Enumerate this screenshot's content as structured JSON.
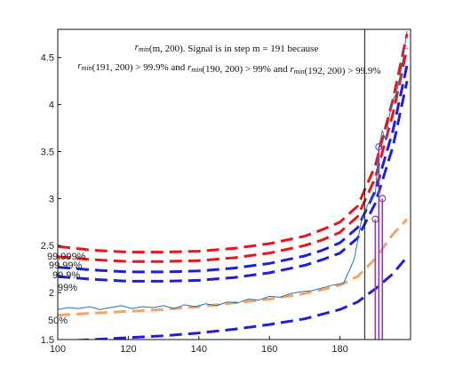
{
  "chart_data": {
    "type": "line",
    "title": "",
    "xlabel": "",
    "ylabel": "",
    "xlim": [
      100,
      200
    ],
    "ylim": [
      1.5,
      4.8
    ],
    "x_ticks": [
      100,
      120,
      140,
      160,
      180
    ],
    "x_tick_labels": [
      "100",
      "120",
      "140",
      "160",
      "180"
    ],
    "y_ticks": [
      1.5,
      2,
      2.5,
      3,
      3.5,
      4,
      4.5
    ],
    "y_tick_labels": [
      "1.5",
      "2",
      "2.5",
      "3",
      "3.5",
      "4",
      "4.5"
    ],
    "grid": false,
    "annotation": {
      "line1": "r_min(m, 200). Signal is in step m = 191 because",
      "line2": "r_min(191, 200) > 99.9% and r_min(190, 200) > 99% and r_min(192, 200) > 99.9%"
    },
    "threshold_labels": [
      "99.999%",
      "99.99%",
      "99.9%",
      "99%",
      "50%"
    ],
    "vertical_marker_x": 187,
    "threshold_curves": [
      {
        "label": "99.999%",
        "color": "#e8161b",
        "x": [
          100,
          110,
          120,
          130,
          140,
          150,
          160,
          170,
          175,
          180,
          185,
          190,
          195,
          199
        ],
        "y": [
          2.49,
          2.45,
          2.43,
          2.43,
          2.44,
          2.47,
          2.52,
          2.6,
          2.67,
          2.75,
          2.92,
          3.35,
          4.05,
          4.75
        ]
      },
      {
        "label": "99.99%",
        "color": "#e8161b",
        "x": [
          100,
          110,
          120,
          130,
          140,
          150,
          160,
          170,
          175,
          180,
          185,
          190,
          195,
          199
        ],
        "y": [
          2.38,
          2.35,
          2.33,
          2.33,
          2.34,
          2.37,
          2.42,
          2.5,
          2.56,
          2.64,
          2.81,
          3.22,
          3.9,
          4.6
        ]
      },
      {
        "label": "99.9%",
        "color": "#1f1fd6",
        "x": [
          100,
          110,
          120,
          130,
          140,
          150,
          160,
          170,
          175,
          180,
          185,
          190,
          195,
          199
        ],
        "y": [
          2.27,
          2.24,
          2.22,
          2.22,
          2.23,
          2.26,
          2.31,
          2.39,
          2.45,
          2.53,
          2.69,
          3.08,
          3.72,
          4.42
        ]
      },
      {
        "label": "99%",
        "color": "#1f1fd6",
        "x": [
          100,
          110,
          120,
          130,
          140,
          150,
          160,
          170,
          175,
          180,
          185,
          190,
          195,
          199
        ],
        "y": [
          2.17,
          2.14,
          2.12,
          2.12,
          2.13,
          2.16,
          2.21,
          2.29,
          2.35,
          2.42,
          2.58,
          2.95,
          3.55,
          4.25
        ]
      },
      {
        "label": "50%",
        "color": "#f4a460",
        "x": [
          100,
          110,
          120,
          130,
          140,
          150,
          160,
          170,
          175,
          180,
          185,
          190,
          195,
          199
        ],
        "y": [
          1.76,
          1.78,
          1.8,
          1.82,
          1.85,
          1.89,
          1.93,
          1.99,
          2.03,
          2.08,
          2.17,
          2.36,
          2.62,
          2.78
        ]
      },
      {
        "label": "",
        "color": "#1f1fd6",
        "x": [
          100,
          110,
          120,
          130,
          140,
          150,
          160,
          170,
          175,
          180,
          185,
          190,
          195,
          199
        ],
        "y": [
          1.48,
          1.5,
          1.52,
          1.54,
          1.57,
          1.61,
          1.66,
          1.72,
          1.77,
          1.82,
          1.9,
          2.04,
          2.2,
          2.38
        ]
      }
    ],
    "signal": {
      "color": "#1f77b4",
      "x": [
        100,
        103,
        106,
        109,
        112,
        115,
        118,
        121,
        124,
        127,
        130,
        133,
        136,
        139,
        142,
        145,
        148,
        151,
        154,
        157,
        160,
        163,
        166,
        169,
        172,
        175,
        178,
        181,
        184,
        186,
        188,
        190,
        191,
        192,
        193,
        194,
        195,
        196,
        197,
        198,
        199
      ],
      "y": [
        1.82,
        1.84,
        1.83,
        1.85,
        1.82,
        1.84,
        1.86,
        1.83,
        1.85,
        1.84,
        1.86,
        1.83,
        1.87,
        1.85,
        1.88,
        1.86,
        1.9,
        1.89,
        1.93,
        1.92,
        1.96,
        1.95,
        1.99,
        2.01,
        2.02,
        2.05,
        2.08,
        2.1,
        2.35,
        2.75,
        2.95,
        3.05,
        3.55,
        3.72,
        3.62,
        3.88,
        4.05,
        4.12,
        4.3,
        4.52,
        4.78
      ]
    },
    "stems": {
      "color": "#8e44ad",
      "x": [
        190,
        191,
        192
      ],
      "y": [
        2.78,
        3.55,
        3.0
      ]
    }
  }
}
